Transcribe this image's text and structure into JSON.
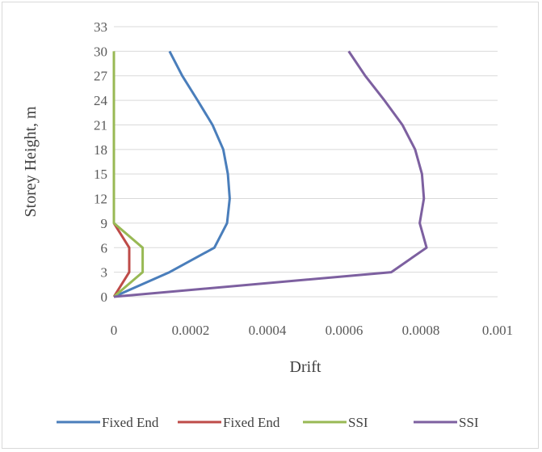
{
  "chart_data": {
    "type": "line",
    "title": "",
    "xlabel": "Drift",
    "ylabel": "Storey Height, m",
    "xlim": [
      0,
      0.001
    ],
    "ylim": [
      0,
      33
    ],
    "x_ticks": [
      "0",
      "0.0002",
      "0.0004",
      "0.0006",
      "0.0008",
      "0.001"
    ],
    "y_ticks": [
      "0",
      "3",
      "6",
      "9",
      "12",
      "15",
      "18",
      "21",
      "24",
      "27",
      "30",
      "33"
    ],
    "grid": "horizontal",
    "legend_position": "bottom",
    "series": [
      {
        "name": "Fixed End",
        "color": "#4a7ebb",
        "points": [
          [
            0,
            0
          ],
          [
            0.000145,
            3
          ],
          [
            0.000262,
            6
          ],
          [
            0.000295,
            9
          ],
          [
            0.000302,
            12
          ],
          [
            0.000297,
            15
          ],
          [
            0.000285,
            18
          ],
          [
            0.000257,
            21
          ],
          [
            0.000218,
            24
          ],
          [
            0.000178,
            27
          ],
          [
            0.000145,
            30
          ]
        ]
      },
      {
        "name": "Fixed End",
        "color": "#be4b48",
        "points": [
          [
            0,
            0
          ],
          [
            4e-05,
            3
          ],
          [
            4e-05,
            6
          ],
          [
            0,
            9
          ]
        ]
      },
      {
        "name": "SSI",
        "color": "#98b954",
        "points": [
          [
            0,
            0
          ],
          [
            7.5e-05,
            3
          ],
          [
            7.5e-05,
            6
          ],
          [
            0,
            9
          ],
          [
            0,
            12
          ],
          [
            0,
            15
          ],
          [
            0,
            18
          ],
          [
            0,
            21
          ],
          [
            0,
            24
          ],
          [
            0,
            27
          ],
          [
            0,
            30
          ]
        ]
      },
      {
        "name": "SSI",
        "color": "#7d60a0",
        "points": [
          [
            0,
            0
          ],
          [
            0.000723,
            3
          ],
          [
            0.000815,
            6
          ],
          [
            0.000797,
            9
          ],
          [
            0.000808,
            12
          ],
          [
            0.000803,
            15
          ],
          [
            0.000785,
            18
          ],
          [
            0.000752,
            21
          ],
          [
            0.000705,
            24
          ],
          [
            0.000655,
            27
          ],
          [
            0.000612,
            30
          ]
        ]
      }
    ]
  }
}
